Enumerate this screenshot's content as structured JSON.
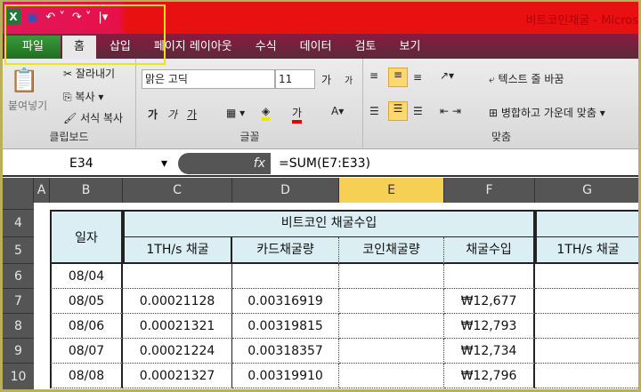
{
  "window": {
    "title": "비트코인채굴 - Micros"
  },
  "qat": {
    "icons": [
      "excel-icon",
      "save-icon",
      "undo-icon",
      "redo-icon",
      "customize-icon"
    ]
  },
  "tabs": [
    "파일",
    "홈",
    "삽입",
    "페이지 레이아웃",
    "수식",
    "데이터",
    "검토",
    "보기"
  ],
  "ribbon": {
    "clipboard": {
      "label": "클립보드",
      "paste": "붙여넣기",
      "cut": "잘라내기",
      "copy": "복사",
      "format_painter": "서식 복사"
    },
    "font": {
      "label": "글꼴",
      "name": "맑은 고딕",
      "size": "11",
      "grow": "가",
      "shrink": "가",
      "bold": "가",
      "italic": "가",
      "underline": "가",
      "color_letter": "가",
      "fill_color": "#f2e600",
      "font_color": "#e00000"
    },
    "align": {
      "label": "맞춤",
      "wrap": "텍스트 줄 바꿈",
      "merge": "병합하고 가운데 맞춤"
    }
  },
  "formula_bar": {
    "name_box": "E34",
    "fx": "fx",
    "formula": "=SUM(E7:E33)"
  },
  "columns": [
    "A",
    "B",
    "C",
    "D",
    "E",
    "F",
    "G"
  ],
  "selected_column": "E",
  "rows": [
    "4",
    "5",
    "6",
    "7",
    "8",
    "9",
    "10"
  ],
  "table": {
    "date_header": "일자",
    "group_header": "비트코인 채굴수입",
    "sub_headers": [
      "1TH/s 채굴",
      "카드채굴량",
      "코인채굴량",
      "채굴수입"
    ],
    "next_sub_header": "1TH/s 채굴",
    "data": [
      [
        "08/04",
        "",
        "",
        "",
        ""
      ],
      [
        "08/05",
        "0.00021128",
        "0.00316919",
        "",
        "₩12,677"
      ],
      [
        "08/06",
        "0.00021321",
        "0.00319815",
        "",
        "₩12,793"
      ],
      [
        "08/07",
        "0.00021224",
        "0.00318357",
        "",
        "₩12,734"
      ],
      [
        "08/08",
        "0.00021327",
        "0.00319910",
        "",
        "₩12,796"
      ]
    ]
  }
}
